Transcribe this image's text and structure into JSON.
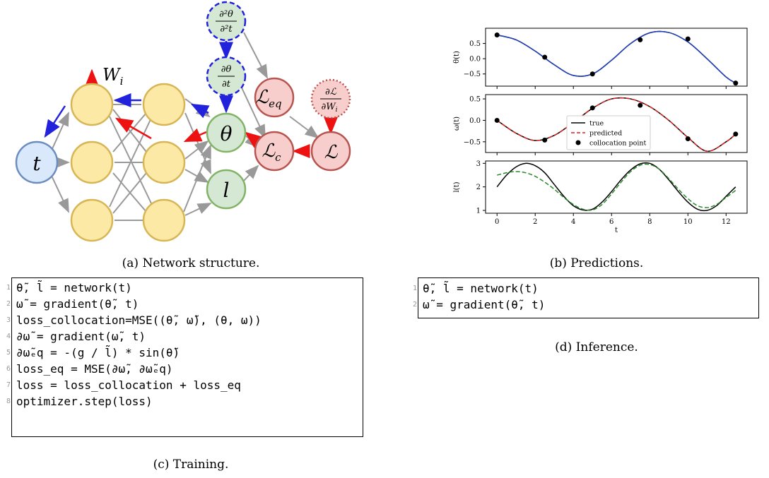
{
  "network": {
    "nodes": {
      "t": "t",
      "theta": "θ",
      "l": "l",
      "L_eq": "ℒ",
      "L_eq_sub": "eq",
      "L_c": "ℒ",
      "L_c_sub": "c",
      "L": "ℒ",
      "W": "W",
      "W_sub": "i",
      "d2theta_num": "∂²θ",
      "d2theta_den": "∂²t",
      "dtheta_num": "∂θ",
      "dtheta_den": "∂t",
      "dLdW_num": "∂ℒ",
      "dLdW_den": "∂W",
      "dLdW_den_sub": "i"
    },
    "colors": {
      "hidden_fill": "#fde9a6",
      "hidden_stroke": "#d6b656",
      "input_fill": "#dae8fc",
      "input_stroke": "#6c8ebf",
      "output_fill": "#d5e8d4",
      "output_stroke": "#82b366",
      "loss_fill": "#f8cecc",
      "loss_stroke": "#b85450",
      "gray_arrow": "#999999",
      "blue_arrow": "#2222dd",
      "red_arrow": "#ee1111"
    }
  },
  "captions": {
    "a": "(a) Network structure.",
    "b": "(b) Predictions.",
    "c": "(c) Training.",
    "d": "(d) Inference."
  },
  "training_code": [
    {
      "n": "1",
      "text": "θ̃, l̃ = network(t)"
    },
    {
      "n": "2",
      "text": "ω̃ = gradient(θ̃, t)"
    },
    {
      "n": "3",
      "text": "loss_collocation=MSE((θ̃, ω̃), (θ, ω))"
    },
    {
      "n": "4",
      "text": "∂ω̃ = gradient(ω̃, t)"
    },
    {
      "n": "5",
      "text": "∂ω̃ₑq = -(g / l̃) * sin(θ̃)"
    },
    {
      "n": "6",
      "text": "loss_eq = MSE(∂ω̃, ∂ω̃ₑq)"
    },
    {
      "n": "7",
      "text": "loss = loss_collocation + loss_eq"
    },
    {
      "n": "8",
      "text": "optimizer.step(loss)"
    }
  ],
  "inference_code": [
    {
      "n": "1",
      "text": "θ̃, l̃ = network(t)"
    },
    {
      "n": "2",
      "text": "ω̃ = gradient(θ̃, t)"
    }
  ],
  "chart_data": [
    {
      "type": "line",
      "ylabel": "θ(t)",
      "xlim": [
        -0.6,
        13.1
      ],
      "ylim": [
        -0.9,
        1.0
      ],
      "yticks": [
        0.5,
        0.0,
        -0.5
      ],
      "ytick_labels": [
        "0.5",
        "0.0",
        "−0.5"
      ],
      "series": [
        {
          "color": "#000000",
          "style": "solid",
          "x": [
            0,
            1,
            2,
            3,
            4,
            5,
            6,
            7,
            8,
            9,
            10,
            11,
            12,
            12.5
          ],
          "y": [
            0.78,
            0.62,
            0.25,
            -0.2,
            -0.55,
            -0.5,
            -0.05,
            0.5,
            0.85,
            0.86,
            0.55,
            0.0,
            -0.6,
            -0.8
          ]
        },
        {
          "color": "#1f3fbf",
          "style": "solid",
          "x": [
            0,
            1,
            2,
            3,
            4,
            5,
            6,
            7,
            8,
            9,
            10,
            11,
            12,
            12.5
          ],
          "y": [
            0.78,
            0.62,
            0.25,
            -0.2,
            -0.55,
            -0.5,
            -0.05,
            0.5,
            0.85,
            0.86,
            0.55,
            0.0,
            -0.6,
            -0.8
          ]
        }
      ],
      "points": {
        "x": [
          0,
          2.5,
          5,
          7.5,
          10,
          12.5
        ],
        "y": [
          0.78,
          0.05,
          -0.5,
          0.62,
          0.65,
          -0.8
        ]
      }
    },
    {
      "type": "line",
      "ylabel": "ω(t)",
      "xlim": [
        -0.6,
        13.1
      ],
      "ylim": [
        -0.75,
        0.6
      ],
      "yticks": [
        0.5,
        0.0,
        -0.5
      ],
      "ytick_labels": [
        "0.5",
        "0.0",
        "−0.5"
      ],
      "legend": [
        "true",
        "predicted",
        "collocation point"
      ],
      "legend_position": "center",
      "series": [
        {
          "name": "true",
          "color": "#000000",
          "style": "solid",
          "x": [
            0,
            1,
            2,
            3,
            4,
            5,
            6,
            7,
            8,
            9,
            10,
            11,
            12,
            12.5
          ],
          "y": [
            0.0,
            -0.3,
            -0.47,
            -0.35,
            -0.05,
            0.28,
            0.5,
            0.5,
            0.32,
            0.0,
            -0.4,
            -0.72,
            -0.5,
            -0.32
          ]
        },
        {
          "name": "predicted",
          "color": "#dd2222",
          "style": "dashed",
          "x": [
            0,
            1,
            2,
            3,
            4,
            5,
            6,
            7,
            8,
            9,
            10,
            11,
            12,
            12.5
          ],
          "y": [
            0.0,
            -0.3,
            -0.47,
            -0.35,
            -0.05,
            0.28,
            0.5,
            0.5,
            0.32,
            0.0,
            -0.4,
            -0.72,
            -0.5,
            -0.32
          ]
        }
      ],
      "points": {
        "name": "collocation point",
        "x": [
          0,
          2.5,
          5,
          7.5,
          10,
          12.5
        ],
        "y": [
          0.0,
          -0.46,
          0.29,
          0.35,
          -0.43,
          -0.32
        ]
      }
    },
    {
      "type": "line",
      "ylabel": "l(t)",
      "xlabel": "t",
      "xlim": [
        -0.6,
        13.1
      ],
      "ylim": [
        0.88,
        3.1
      ],
      "yticks": [
        3,
        2,
        1
      ],
      "ytick_labels": [
        "3",
        "2",
        "1"
      ],
      "xticks": [
        0,
        2,
        4,
        6,
        8,
        10,
        12
      ],
      "xtick_labels": [
        "0",
        "2",
        "4",
        "6",
        "8",
        "10",
        "12"
      ],
      "series": [
        {
          "color": "#000000",
          "style": "solid",
          "x": [
            0,
            0.5,
            1,
            1.5,
            2,
            2.5,
            3,
            3.5,
            4,
            4.5,
            5,
            5.5,
            6,
            6.5,
            7,
            7.5,
            8,
            8.5,
            9,
            9.5,
            10,
            10.5,
            11,
            11.5,
            12,
            12.5
          ],
          "y": [
            2.0,
            2.5,
            2.85,
            3.0,
            2.9,
            2.6,
            2.1,
            1.6,
            1.2,
            1.02,
            1.05,
            1.35,
            1.8,
            2.3,
            2.72,
            2.98,
            3.0,
            2.75,
            2.3,
            1.8,
            1.35,
            1.05,
            1.0,
            1.2,
            1.6,
            2.0
          ]
        },
        {
          "color": "#2a8a2a",
          "style": "dashed",
          "x": [
            0,
            0.5,
            1,
            1.5,
            2,
            2.5,
            3,
            3.5,
            4,
            4.5,
            5,
            5.5,
            6,
            6.5,
            7,
            7.5,
            8,
            8.5,
            9,
            9.5,
            10,
            10.5,
            11,
            11.5,
            12,
            12.5
          ],
          "y": [
            2.5,
            2.6,
            2.65,
            2.6,
            2.45,
            2.2,
            1.9,
            1.55,
            1.25,
            1.05,
            1.02,
            1.25,
            1.7,
            2.2,
            2.65,
            2.92,
            2.95,
            2.75,
            2.35,
            1.9,
            1.5,
            1.2,
            1.12,
            1.25,
            1.55,
            1.85
          ]
        }
      ]
    }
  ]
}
